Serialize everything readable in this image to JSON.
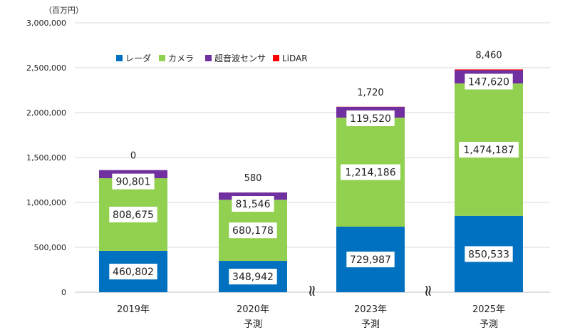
{
  "chart_data": {
    "type": "bar",
    "stacked": true,
    "unit_label": "（百万円）",
    "categories": [
      "2019年",
      "2020年",
      "2023年",
      "2025年"
    ],
    "category_sublabels": [
      "",
      "予測",
      "予測",
      "予測"
    ],
    "axis_break_markers": [
      "≈",
      "≈"
    ],
    "ylim": [
      0,
      3000000
    ],
    "yticks": [
      0,
      500000,
      1000000,
      1500000,
      2000000,
      2500000,
      3000000
    ],
    "ytick_labels": [
      "0",
      "500,000",
      "1,000,000",
      "1,500,000",
      "2,000,000",
      "2,500,000",
      "3,000,000"
    ],
    "grid": true,
    "legend_position": "top-left",
    "series": [
      {
        "name": "レーダ",
        "color": "#0070c0",
        "values": [
          460802,
          348942,
          729987,
          850533
        ],
        "labels": [
          "460,802",
          "348,942",
          "729,987",
          "850,533"
        ]
      },
      {
        "name": "カメラ",
        "color": "#92d050",
        "values": [
          808675,
          680178,
          1214186,
          1474187
        ],
        "labels": [
          "808,675",
          "680,178",
          "1,214,186",
          "1,474,187"
        ]
      },
      {
        "name": "超音波センサ",
        "color": "#7030a0",
        "values": [
          90801,
          81546,
          119520,
          147620
        ],
        "labels": [
          "90,801",
          "81,546",
          "119,520",
          "147,620"
        ]
      },
      {
        "name": "LiDAR",
        "color": "#ff0000",
        "values": [
          0,
          580,
          1720,
          8460
        ],
        "labels": [
          "0",
          "580",
          "1,720",
          "8,460"
        ]
      }
    ]
  }
}
